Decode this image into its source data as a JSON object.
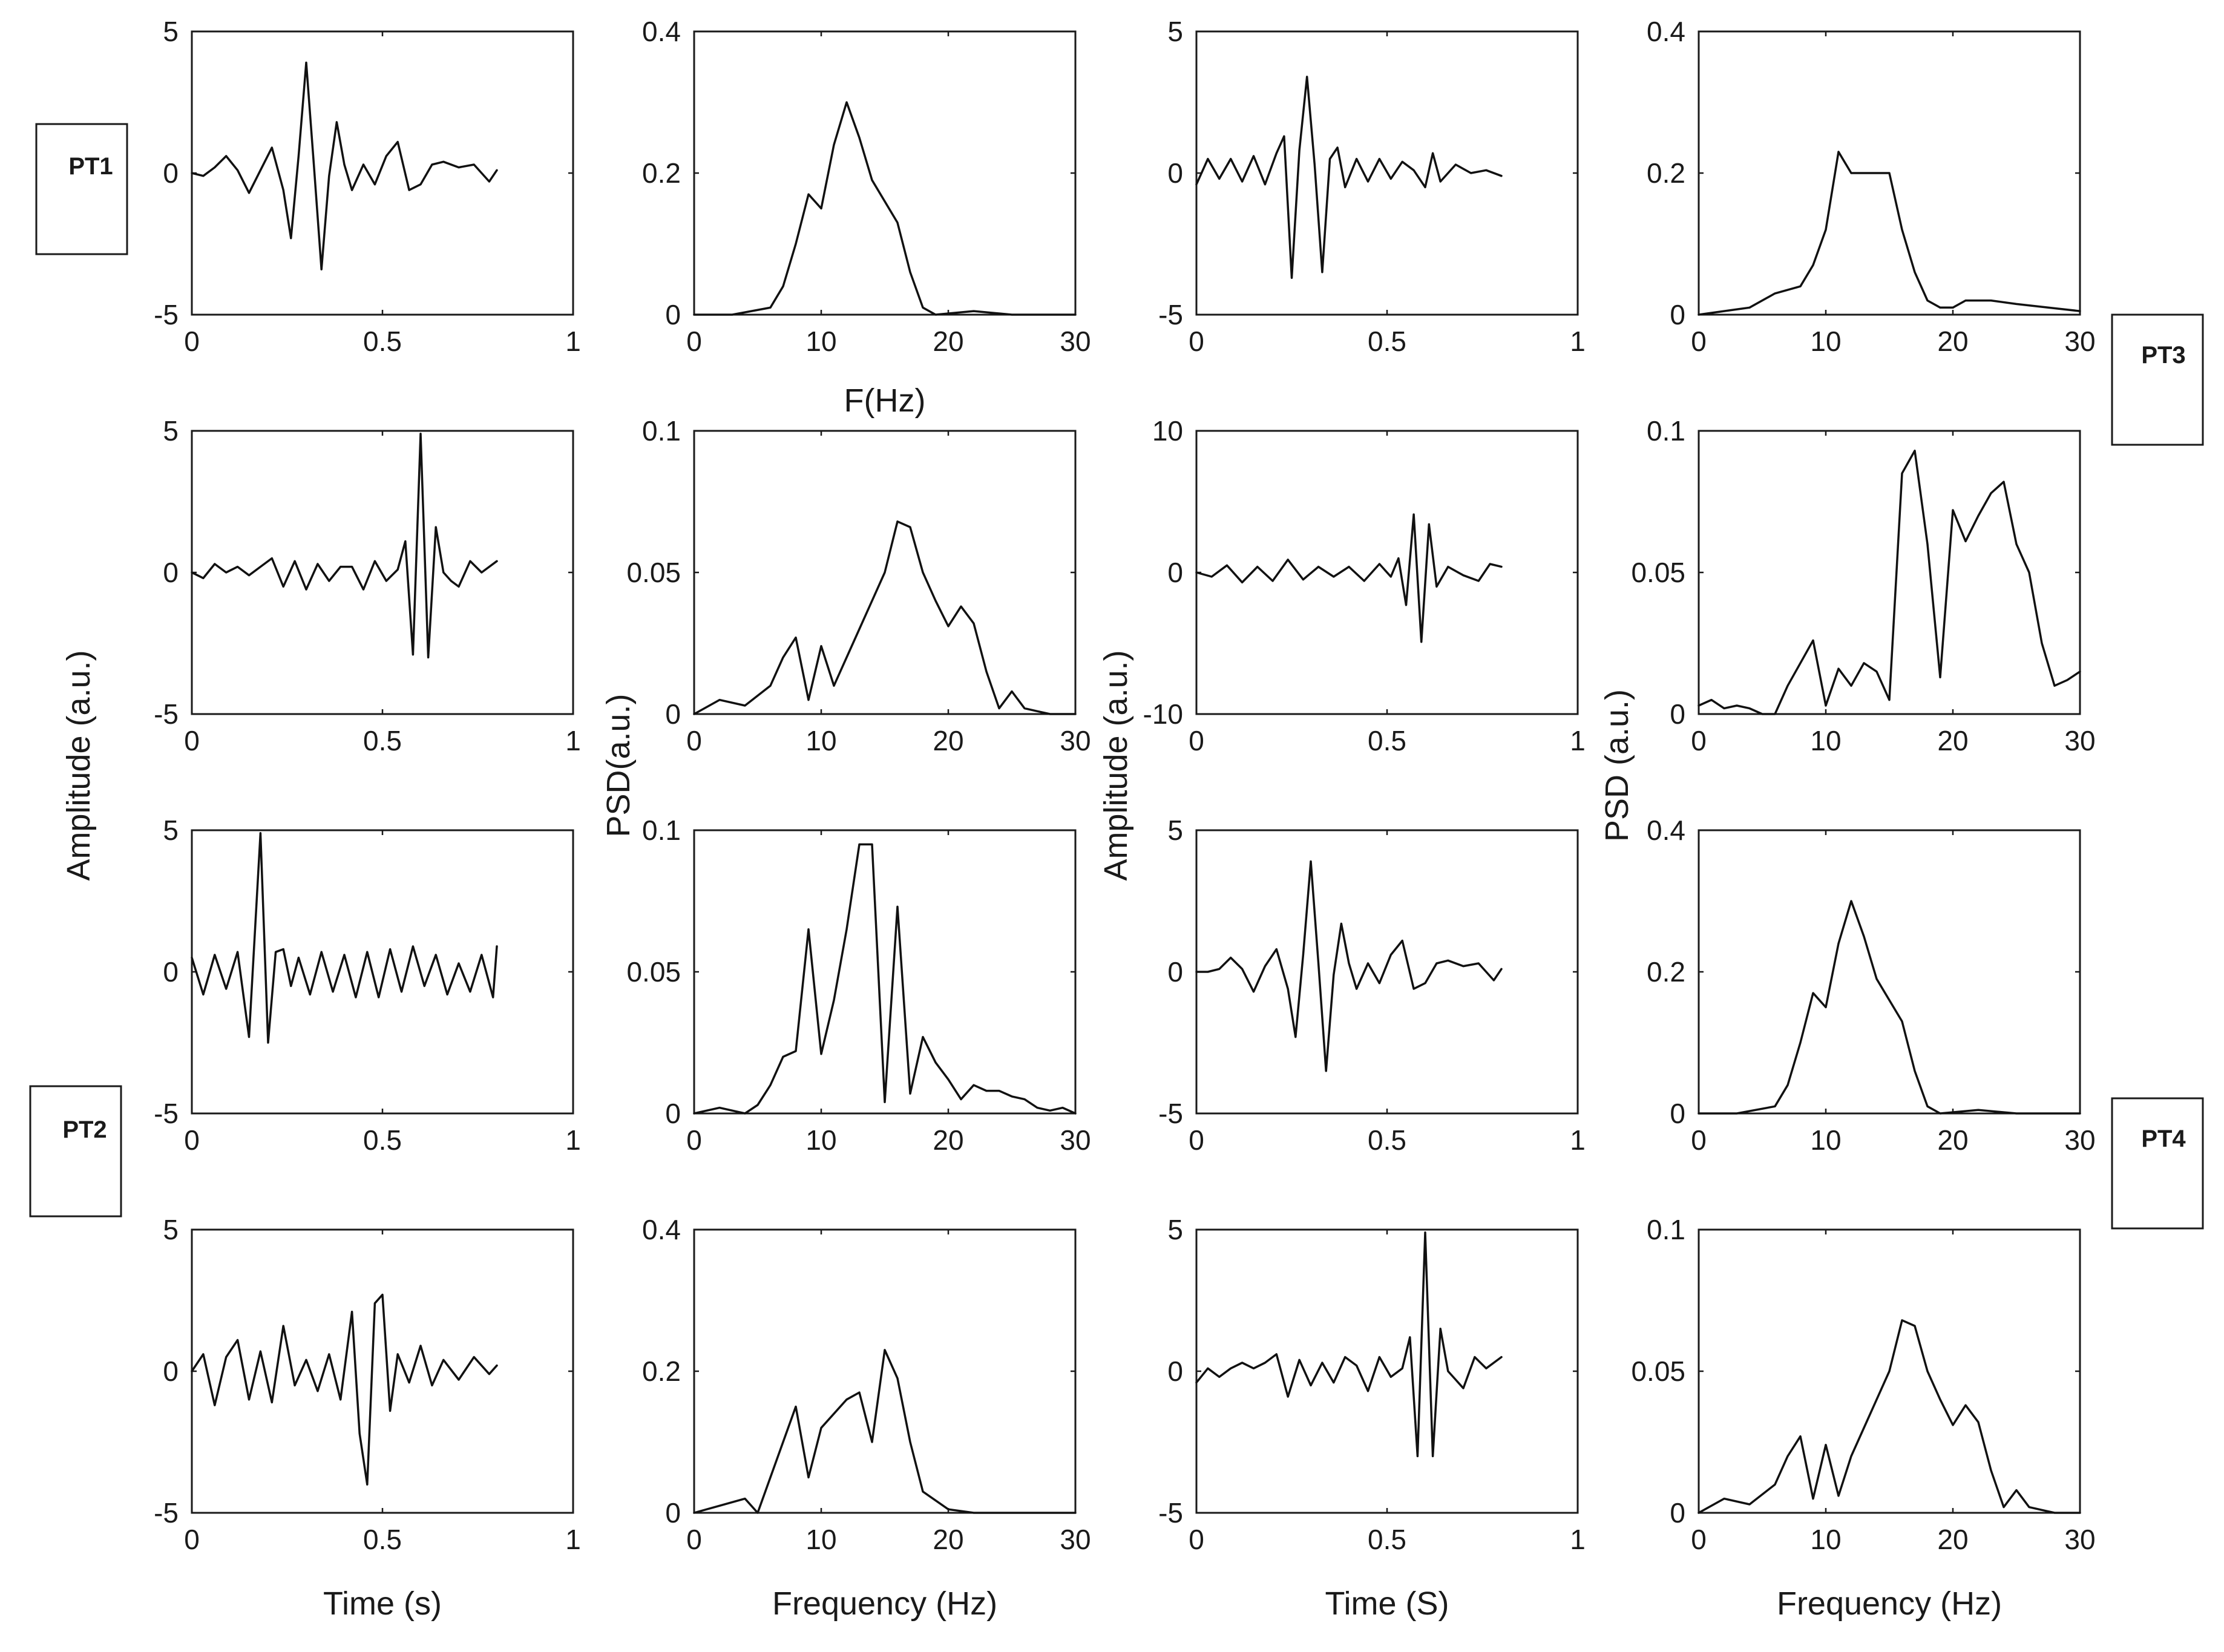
{
  "figure": {
    "x_labels": [
      "Time (s)",
      "Frequency (Hz)",
      "Time (S)",
      "Frequency (Hz)"
    ],
    "fhz_label": "F(Hz)",
    "y_labels": [
      "Amplitude (a.u.)",
      "PSD(a.u.)",
      "Amplitude (a.u.)",
      "PSD (a.u.)"
    ],
    "patients": [
      {
        "label": "PT1"
      },
      {
        "label": "PT2"
      },
      {
        "label": "PT3"
      },
      {
        "label": "PT4"
      }
    ],
    "colors": {
      "line": "#111111",
      "frame": "#1a1a1a",
      "background": "#ffffff"
    }
  },
  "chart_data": [
    {
      "type": "line",
      "row": 0,
      "col": 0,
      "xlim": [
        0,
        1
      ],
      "ylim": [
        -5,
        5
      ],
      "xticks": [
        "0",
        "0.5",
        "1"
      ],
      "yticks": [
        "-5",
        "0",
        "5"
      ],
      "x": [
        0,
        0.03,
        0.06,
        0.09,
        0.12,
        0.15,
        0.18,
        0.21,
        0.24,
        0.26,
        0.28,
        0.3,
        0.32,
        0.34,
        0.36,
        0.38,
        0.4,
        0.42,
        0.45,
        0.48,
        0.51,
        0.54,
        0.57,
        0.6,
        0.63,
        0.66,
        0.7,
        0.74,
        0.78,
        0.8
      ],
      "y": [
        0,
        -0.1,
        0.2,
        0.6,
        0.1,
        -0.7,
        0.1,
        0.9,
        -0.6,
        -2.3,
        0.6,
        3.9,
        0.3,
        -3.4,
        -0.1,
        1.8,
        0.3,
        -0.6,
        0.3,
        -0.4,
        0.6,
        1.1,
        -0.6,
        -0.4,
        0.3,
        0.4,
        0.2,
        0.3,
        -0.3,
        0.1
      ]
    },
    {
      "type": "line",
      "row": 0,
      "col": 1,
      "xlim": [
        0,
        30
      ],
      "ylim": [
        0,
        0.4
      ],
      "xticks": [
        "0",
        "10",
        "20",
        "30"
      ],
      "yticks": [
        "0",
        "0.2",
        "0.4"
      ],
      "x": [
        0,
        3,
        6,
        7,
        8,
        9,
        10,
        11,
        12,
        13,
        14,
        16,
        17,
        18,
        19,
        22,
        25,
        30
      ],
      "y": [
        0,
        0,
        0.01,
        0.04,
        0.1,
        0.17,
        0.15,
        0.24,
        0.3,
        0.25,
        0.19,
        0.13,
        0.06,
        0.01,
        0,
        0.005,
        0,
        0
      ]
    },
    {
      "type": "line",
      "row": 0,
      "col": 2,
      "xlim": [
        0,
        1
      ],
      "ylim": [
        -5,
        5
      ],
      "xticks": [
        "0",
        "0.5",
        "1"
      ],
      "yticks": [
        "-5",
        "0",
        "5"
      ],
      "x": [
        0,
        0.03,
        0.06,
        0.09,
        0.12,
        0.15,
        0.18,
        0.21,
        0.23,
        0.25,
        0.27,
        0.29,
        0.31,
        0.33,
        0.35,
        0.37,
        0.39,
        0.42,
        0.45,
        0.48,
        0.51,
        0.54,
        0.57,
        0.6,
        0.62,
        0.64,
        0.68,
        0.72,
        0.76,
        0.8
      ],
      "y": [
        -0.4,
        0.5,
        -0.2,
        0.5,
        -0.3,
        0.6,
        -0.4,
        0.7,
        1.3,
        -3.7,
        0.8,
        3.4,
        0.3,
        -3.5,
        0.5,
        0.9,
        -0.5,
        0.5,
        -0.3,
        0.5,
        -0.2,
        0.4,
        0.1,
        -0.5,
        0.7,
        -0.3,
        0.3,
        0,
        0.1,
        -0.1
      ]
    },
    {
      "type": "line",
      "row": 0,
      "col": 3,
      "xlim": [
        0,
        30
      ],
      "ylim": [
        0,
        0.4
      ],
      "xticks": [
        "0",
        "10",
        "20",
        "30"
      ],
      "yticks": [
        "0",
        "0.2",
        "0.4"
      ],
      "x": [
        0,
        2,
        4,
        6,
        8,
        9,
        10,
        11,
        12,
        13,
        14,
        15,
        16,
        17,
        18,
        19,
        20,
        21,
        23,
        25,
        30
      ],
      "y": [
        0,
        0.005,
        0.01,
        0.03,
        0.04,
        0.07,
        0.12,
        0.23,
        0.2,
        0.2,
        0.2,
        0.2,
        0.12,
        0.06,
        0.02,
        0.01,
        0.01,
        0.02,
        0.02,
        0.015,
        0.005
      ]
    },
    {
      "type": "line",
      "row": 1,
      "col": 0,
      "xlim": [
        0,
        1
      ],
      "ylim": [
        -5,
        5
      ],
      "xticks": [
        "0",
        "0.5",
        "1"
      ],
      "yticks": [
        "-5",
        "0",
        "5"
      ],
      "x": [
        0,
        0.03,
        0.06,
        0.09,
        0.12,
        0.15,
        0.18,
        0.21,
        0.24,
        0.27,
        0.3,
        0.33,
        0.36,
        0.39,
        0.42,
        0.45,
        0.48,
        0.51,
        0.54,
        0.56,
        0.58,
        0.6,
        0.62,
        0.64,
        0.66,
        0.68,
        0.7,
        0.73,
        0.76,
        0.8
      ],
      "y": [
        0,
        -0.2,
        0.3,
        0,
        0.2,
        -0.1,
        0.2,
        0.5,
        -0.5,
        0.4,
        -0.6,
        0.3,
        -0.3,
        0.2,
        0.2,
        -0.6,
        0.4,
        -0.3,
        0.1,
        1.1,
        -2.9,
        4.9,
        -3.0,
        1.6,
        0,
        -0.3,
        -0.5,
        0.4,
        0,
        0.4
      ]
    },
    {
      "type": "line",
      "row": 1,
      "col": 1,
      "xlim": [
        0,
        30
      ],
      "ylim": [
        0,
        0.1
      ],
      "xticks": [
        "0",
        "10",
        "20",
        "30"
      ],
      "yticks": [
        "0",
        "0.05",
        "0.1"
      ],
      "x": [
        0,
        2,
        4,
        6,
        7,
        8,
        9,
        10,
        11,
        12,
        13,
        14,
        15,
        16,
        17,
        18,
        19,
        20,
        21,
        22,
        23,
        24,
        25,
        26,
        27,
        28,
        30
      ],
      "y": [
        0,
        0.005,
        0.003,
        0.01,
        0.02,
        0.027,
        0.005,
        0.024,
        0.01,
        0.02,
        0.03,
        0.04,
        0.05,
        0.068,
        0.066,
        0.05,
        0.04,
        0.031,
        0.038,
        0.032,
        0.015,
        0.002,
        0.008,
        0.002,
        0.001,
        0,
        0
      ]
    },
    {
      "type": "line",
      "row": 1,
      "col": 2,
      "xlim": [
        0,
        1
      ],
      "ylim": [
        -10,
        10
      ],
      "xticks": [
        "0",
        "0.5",
        "1"
      ],
      "yticks": [
        "-10",
        "0",
        "10"
      ],
      "x": [
        0,
        0.04,
        0.08,
        0.12,
        0.16,
        0.2,
        0.24,
        0.28,
        0.32,
        0.36,
        0.4,
        0.44,
        0.48,
        0.51,
        0.53,
        0.55,
        0.57,
        0.59,
        0.61,
        0.63,
        0.66,
        0.7,
        0.74,
        0.77,
        0.8
      ],
      "y": [
        0,
        -0.3,
        0.5,
        -0.7,
        0.4,
        -0.6,
        0.9,
        -0.5,
        0.4,
        -0.3,
        0.4,
        -0.6,
        0.6,
        -0.3,
        1.0,
        -2.3,
        4.1,
        -4.9,
        3.4,
        -1.0,
        0.4,
        -0.2,
        -0.6,
        0.6,
        0.4
      ]
    },
    {
      "type": "line",
      "row": 1,
      "col": 3,
      "xlim": [
        0,
        30
      ],
      "ylim": [
        0,
        0.1
      ],
      "xticks": [
        "0",
        "10",
        "20",
        "30"
      ],
      "yticks": [
        "0",
        "0.05",
        "0.1"
      ],
      "x": [
        0,
        1,
        2,
        3,
        4,
        5,
        6,
        7,
        8,
        9,
        10,
        11,
        12,
        13,
        14,
        15,
        16,
        17,
        18,
        19,
        20,
        21,
        22,
        23,
        24,
        25,
        26,
        27,
        28,
        29,
        30
      ],
      "y": [
        0.003,
        0.005,
        0.002,
        0.003,
        0.002,
        0,
        0,
        0.01,
        0.018,
        0.026,
        0.003,
        0.016,
        0.01,
        0.018,
        0.015,
        0.005,
        0.085,
        0.093,
        0.06,
        0.013,
        0.072,
        0.061,
        0.07,
        0.078,
        0.082,
        0.06,
        0.05,
        0.025,
        0.01,
        0.012,
        0.015
      ]
    },
    {
      "type": "line",
      "row": 2,
      "col": 0,
      "xlim": [
        0,
        1
      ],
      "ylim": [
        -5,
        5
      ],
      "xticks": [
        "0",
        "0.5",
        "1"
      ],
      "yticks": [
        "-5",
        "0",
        "5"
      ],
      "x": [
        0,
        0.03,
        0.06,
        0.09,
        0.12,
        0.15,
        0.18,
        0.2,
        0.22,
        0.24,
        0.26,
        0.28,
        0.31,
        0.34,
        0.37,
        0.4,
        0.43,
        0.46,
        0.49,
        0.52,
        0.55,
        0.58,
        0.61,
        0.64,
        0.67,
        0.7,
        0.73,
        0.76,
        0.79,
        0.8
      ],
      "y": [
        0.5,
        -0.8,
        0.6,
        -0.6,
        0.7,
        -2.3,
        4.9,
        -2.5,
        0.7,
        0.8,
        -0.5,
        0.5,
        -0.8,
        0.7,
        -0.7,
        0.6,
        -0.9,
        0.7,
        -0.9,
        0.8,
        -0.7,
        0.9,
        -0.5,
        0.6,
        -0.8,
        0.3,
        -0.7,
        0.6,
        -0.9,
        0.9
      ]
    },
    {
      "type": "line",
      "row": 2,
      "col": 1,
      "xlim": [
        0,
        30
      ],
      "ylim": [
        0,
        0.1
      ],
      "xticks": [
        "0",
        "10",
        "20",
        "30"
      ],
      "yticks": [
        "0",
        "0.05",
        "0.1"
      ],
      "x": [
        0,
        2,
        4,
        5,
        6,
        7,
        8,
        9,
        10,
        11,
        12,
        13,
        14,
        15,
        16,
        17,
        18,
        19,
        20,
        21,
        22,
        23,
        24,
        25,
        26,
        27,
        28,
        29,
        30
      ],
      "y": [
        0,
        0.002,
        0,
        0.003,
        0.01,
        0.02,
        0.022,
        0.065,
        0.021,
        0.04,
        0.065,
        0.095,
        0.095,
        0.004,
        0.073,
        0.007,
        0.027,
        0.018,
        0.012,
        0.005,
        0.01,
        0.008,
        0.008,
        0.006,
        0.005,
        0.002,
        0.001,
        0.002,
        0
      ]
    },
    {
      "type": "line",
      "row": 2,
      "col": 2,
      "xlim": [
        0,
        1
      ],
      "ylim": [
        -5,
        5
      ],
      "xticks": [
        "0",
        "0.5",
        "1"
      ],
      "yticks": [
        "-5",
        "0",
        "5"
      ],
      "x": [
        0,
        0.03,
        0.06,
        0.09,
        0.12,
        0.15,
        0.18,
        0.21,
        0.24,
        0.26,
        0.28,
        0.3,
        0.32,
        0.34,
        0.36,
        0.38,
        0.4,
        0.42,
        0.45,
        0.48,
        0.51,
        0.54,
        0.57,
        0.6,
        0.63,
        0.66,
        0.7,
        0.74,
        0.78,
        0.8
      ],
      "y": [
        0,
        0,
        0.1,
        0.5,
        0.1,
        -0.7,
        0.2,
        0.8,
        -0.6,
        -2.3,
        0.6,
        3.9,
        0.3,
        -3.5,
        -0.1,
        1.7,
        0.3,
        -0.6,
        0.3,
        -0.4,
        0.6,
        1.1,
        -0.6,
        -0.4,
        0.3,
        0.4,
        0.2,
        0.3,
        -0.3,
        0.1
      ]
    },
    {
      "type": "line",
      "row": 2,
      "col": 3,
      "xlim": [
        0,
        30
      ],
      "ylim": [
        0,
        0.4
      ],
      "xticks": [
        "0",
        "10",
        "20",
        "30"
      ],
      "yticks": [
        "0",
        "0.2",
        "0.4"
      ],
      "x": [
        0,
        3,
        6,
        7,
        8,
        9,
        10,
        11,
        12,
        13,
        14,
        16,
        17,
        18,
        19,
        22,
        25,
        30
      ],
      "y": [
        0,
        0,
        0.01,
        0.04,
        0.1,
        0.17,
        0.15,
        0.24,
        0.3,
        0.25,
        0.19,
        0.13,
        0.06,
        0.01,
        0,
        0.005,
        0,
        0
      ]
    },
    {
      "type": "line",
      "row": 3,
      "col": 0,
      "xlim": [
        0,
        1
      ],
      "ylim": [
        -5,
        5
      ],
      "xticks": [
        "0",
        "0.5",
        "1"
      ],
      "yticks": [
        "-5",
        "0",
        "5"
      ],
      "x": [
        0,
        0.03,
        0.06,
        0.09,
        0.12,
        0.15,
        0.18,
        0.21,
        0.24,
        0.27,
        0.3,
        0.33,
        0.36,
        0.39,
        0.42,
        0.44,
        0.46,
        0.48,
        0.5,
        0.52,
        0.54,
        0.57,
        0.6,
        0.63,
        0.66,
        0.7,
        0.74,
        0.78,
        0.8
      ],
      "y": [
        0,
        0.6,
        -1.2,
        0.5,
        1.1,
        -1.0,
        0.7,
        -1.1,
        1.6,
        -0.5,
        0.4,
        -0.7,
        0.6,
        -1.0,
        2.1,
        -2.2,
        -4.0,
        2.4,
        2.7,
        -1.4,
        0.6,
        -0.4,
        0.9,
        -0.5,
        0.4,
        -0.3,
        0.5,
        -0.1,
        0.2
      ]
    },
    {
      "type": "line",
      "row": 3,
      "col": 1,
      "xlim": [
        0,
        30
      ],
      "ylim": [
        0,
        0.4
      ],
      "xticks": [
        "0",
        "10",
        "20",
        "30"
      ],
      "yticks": [
        "0",
        "0.2",
        "0.4"
      ],
      "x": [
        0,
        2,
        4,
        5,
        6,
        7,
        8,
        9,
        10,
        11,
        12,
        13,
        14,
        15,
        16,
        17,
        18,
        20,
        22,
        25,
        30
      ],
      "y": [
        0,
        0.01,
        0.02,
        0,
        0.05,
        0.1,
        0.15,
        0.05,
        0.12,
        0.14,
        0.16,
        0.17,
        0.1,
        0.23,
        0.19,
        0.1,
        0.03,
        0.005,
        0,
        0,
        0
      ]
    },
    {
      "type": "line",
      "row": 3,
      "col": 2,
      "xlim": [
        0,
        1
      ],
      "ylim": [
        -5,
        5
      ],
      "xticks": [
        "0",
        "0.5",
        "1"
      ],
      "yticks": [
        "-5",
        "0",
        "5"
      ],
      "x": [
        0,
        0.03,
        0.06,
        0.09,
        0.12,
        0.15,
        0.18,
        0.21,
        0.24,
        0.27,
        0.3,
        0.33,
        0.36,
        0.39,
        0.42,
        0.45,
        0.48,
        0.51,
        0.54,
        0.56,
        0.58,
        0.6,
        0.62,
        0.64,
        0.66,
        0.68,
        0.7,
        0.73,
        0.76,
        0.8
      ],
      "y": [
        -0.4,
        0.1,
        -0.2,
        0.1,
        0.3,
        0.1,
        0.3,
        0.6,
        -0.9,
        0.4,
        -0.5,
        0.3,
        -0.4,
        0.5,
        0.2,
        -0.7,
        0.5,
        -0.2,
        0.1,
        1.2,
        -3.0,
        4.9,
        -3.0,
        1.5,
        0,
        -0.3,
        -0.6,
        0.5,
        0.1,
        0.5
      ]
    },
    {
      "type": "line",
      "row": 3,
      "col": 3,
      "xlim": [
        0,
        30
      ],
      "ylim": [
        0,
        0.1
      ],
      "xticks": [
        "0",
        "10",
        "20",
        "30"
      ],
      "yticks": [
        "0",
        "0.05",
        "0.1"
      ],
      "x": [
        0,
        2,
        4,
        6,
        7,
        8,
        9,
        10,
        11,
        12,
        13,
        14,
        15,
        16,
        17,
        18,
        19,
        20,
        21,
        22,
        23,
        24,
        25,
        26,
        27,
        28,
        30
      ],
      "y": [
        0,
        0.005,
        0.003,
        0.01,
        0.02,
        0.027,
        0.005,
        0.024,
        0.006,
        0.02,
        0.03,
        0.04,
        0.05,
        0.068,
        0.066,
        0.05,
        0.04,
        0.031,
        0.038,
        0.032,
        0.015,
        0.002,
        0.008,
        0.002,
        0.001,
        0,
        0
      ]
    }
  ]
}
